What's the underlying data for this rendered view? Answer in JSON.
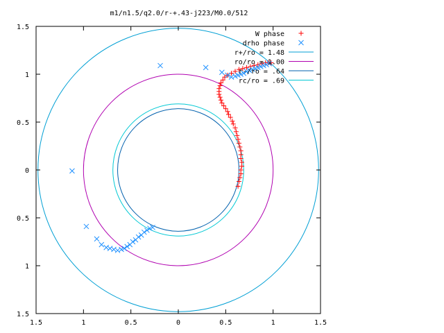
{
  "chart_data": {
    "type": "scatter",
    "title": "m1/n1.5/q2.0/r-+.43-j223/M0.0/512",
    "xlabel": "",
    "ylabel": "",
    "xlim": [
      -1.5,
      1.5
    ],
    "ylim": [
      -1.5,
      1.5
    ],
    "grid": false,
    "legend_position": "top-right",
    "xticks": [
      {
        "value": -1.5,
        "label": "1.5"
      },
      {
        "value": -1.0,
        "label": "1"
      },
      {
        "value": -0.5,
        "label": "0.5"
      },
      {
        "value": 0.0,
        "label": "0"
      },
      {
        "value": 0.5,
        "label": "0.5"
      },
      {
        "value": 1.0,
        "label": "1"
      },
      {
        "value": 1.5,
        "label": "1.5"
      }
    ],
    "yticks": [
      {
        "value": 1.5,
        "label": "1.5"
      },
      {
        "value": 1.0,
        "label": "1"
      },
      {
        "value": 0.5,
        "label": "0.5"
      },
      {
        "value": 0.0,
        "label": "0"
      },
      {
        "value": -0.5,
        "label": "0.5"
      },
      {
        "value": -1.0,
        "label": "1"
      },
      {
        "value": -1.5,
        "label": "1.5"
      }
    ],
    "circles": [
      {
        "name": "r+/ro = 1.48",
        "radius": 1.48,
        "color": "#009fd4"
      },
      {
        "name": "ro/ro = 1.00",
        "radius": 1.0,
        "color": "#b000b0"
      },
      {
        "name": "r-/ro = .64",
        "radius": 0.64,
        "color": "#0060ad"
      },
      {
        "name": "rc/ro = .69",
        "radius": 0.69,
        "color": "#00c8d4"
      }
    ],
    "series": [
      {
        "name": "W phase",
        "marker": "plus",
        "color": "#ff0000",
        "points": [
          [
            0.63,
            -0.17
          ],
          [
            0.64,
            -0.12
          ],
          [
            0.65,
            -0.08
          ],
          [
            0.66,
            -0.04
          ],
          [
            0.66,
            0.0
          ],
          [
            0.67,
            0.04
          ],
          [
            0.67,
            0.08
          ],
          [
            0.66,
            0.12
          ],
          [
            0.66,
            0.16
          ],
          [
            0.66,
            0.2
          ],
          [
            0.65,
            0.24
          ],
          [
            0.64,
            0.28
          ],
          [
            0.63,
            0.32
          ],
          [
            0.62,
            0.36
          ],
          [
            0.61,
            0.4
          ],
          [
            0.6,
            0.44
          ],
          [
            0.58,
            0.48
          ],
          [
            0.57,
            0.51
          ],
          [
            0.55,
            0.55
          ],
          [
            0.53,
            0.58
          ],
          [
            0.52,
            0.61
          ],
          [
            0.5,
            0.64
          ],
          [
            0.48,
            0.67
          ],
          [
            0.46,
            0.7
          ],
          [
            0.45,
            0.73
          ],
          [
            0.44,
            0.76
          ],
          [
            0.43,
            0.79
          ],
          [
            0.43,
            0.82
          ],
          [
            0.43,
            0.85
          ],
          [
            0.44,
            0.88
          ],
          [
            0.45,
            0.91
          ],
          [
            0.47,
            0.94
          ],
          [
            0.49,
            0.97
          ],
          [
            0.52,
            0.99
          ],
          [
            0.56,
            1.01
          ],
          [
            0.6,
            1.03
          ],
          [
            0.64,
            1.05
          ],
          [
            0.68,
            1.06
          ],
          [
            0.72,
            1.07
          ],
          [
            0.76,
            1.08
          ],
          [
            0.8,
            1.09
          ],
          [
            0.84,
            1.1
          ],
          [
            0.88,
            1.11
          ],
          [
            0.92,
            1.12
          ],
          [
            0.95,
            1.12
          ],
          [
            0.98,
            1.12
          ]
        ]
      },
      {
        "name": "drho phase",
        "marker": "cross",
        "color": "#1e90ff",
        "points": [
          [
            -1.12,
            -0.01
          ],
          [
            -0.97,
            -0.59
          ],
          [
            -0.86,
            -0.72
          ],
          [
            -0.81,
            -0.78
          ],
          [
            -0.76,
            -0.81
          ],
          [
            -0.72,
            -0.82
          ],
          [
            -0.68,
            -0.83
          ],
          [
            -0.64,
            -0.84
          ],
          [
            -0.6,
            -0.83
          ],
          [
            -0.57,
            -0.82
          ],
          [
            -0.54,
            -0.8
          ],
          [
            -0.51,
            -0.78
          ],
          [
            -0.48,
            -0.75
          ],
          [
            -0.45,
            -0.73
          ],
          [
            -0.42,
            -0.7
          ],
          [
            -0.39,
            -0.68
          ],
          [
            -0.36,
            -0.65
          ],
          [
            -0.33,
            -0.63
          ],
          [
            -0.3,
            -0.61
          ],
          [
            -0.27,
            -0.6
          ],
          [
            -0.19,
            1.09
          ],
          [
            0.29,
            1.07
          ],
          [
            0.46,
            1.02
          ],
          [
            0.52,
            0.99
          ],
          [
            0.56,
            0.97
          ],
          [
            0.6,
            0.98
          ],
          [
            0.63,
            0.99
          ],
          [
            0.66,
            1.0
          ],
          [
            0.69,
            1.01
          ],
          [
            0.72,
            1.03
          ],
          [
            0.75,
            1.04
          ],
          [
            0.78,
            1.05
          ],
          [
            0.81,
            1.06
          ],
          [
            0.84,
            1.07
          ],
          [
            0.87,
            1.08
          ],
          [
            0.9,
            1.09
          ],
          [
            0.93,
            1.1
          ],
          [
            0.96,
            1.11
          ]
        ]
      }
    ]
  }
}
